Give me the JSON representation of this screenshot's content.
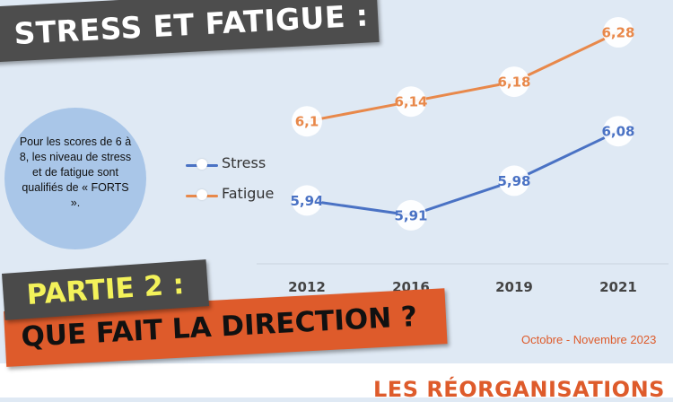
{
  "title": "STRESS ET FATIGUE :",
  "info_text": "Pour les scores de 6 à 8, les niveau de stress et de fatigue sont qualifiés de « FORTS ».",
  "partie_label": "PARTIE 2 :",
  "question_label": "QUE FAIT LA DIRECTION ?",
  "date_note": "Octobre - Novembre 2023",
  "next_heading": "LES RÉORGANISATIONS",
  "chart_data": {
    "type": "line",
    "categories": [
      "2012",
      "2016",
      "2019",
      "2021"
    ],
    "series": [
      {
        "name": "Stress",
        "values": [
          5.94,
          5.91,
          5.98,
          6.08
        ],
        "labels": [
          "5,94",
          "5,91",
          "5,98",
          "6,08"
        ],
        "color": "#4a72c4"
      },
      {
        "name": "Fatigue",
        "values": [
          6.1,
          6.14,
          6.18,
          6.28
        ],
        "labels": [
          "6,1",
          "6,14",
          "6,18",
          "6,28"
        ],
        "color": "#e8884a"
      }
    ],
    "ylim": [
      5.85,
      6.3
    ],
    "legend": "left",
    "grid": false
  }
}
